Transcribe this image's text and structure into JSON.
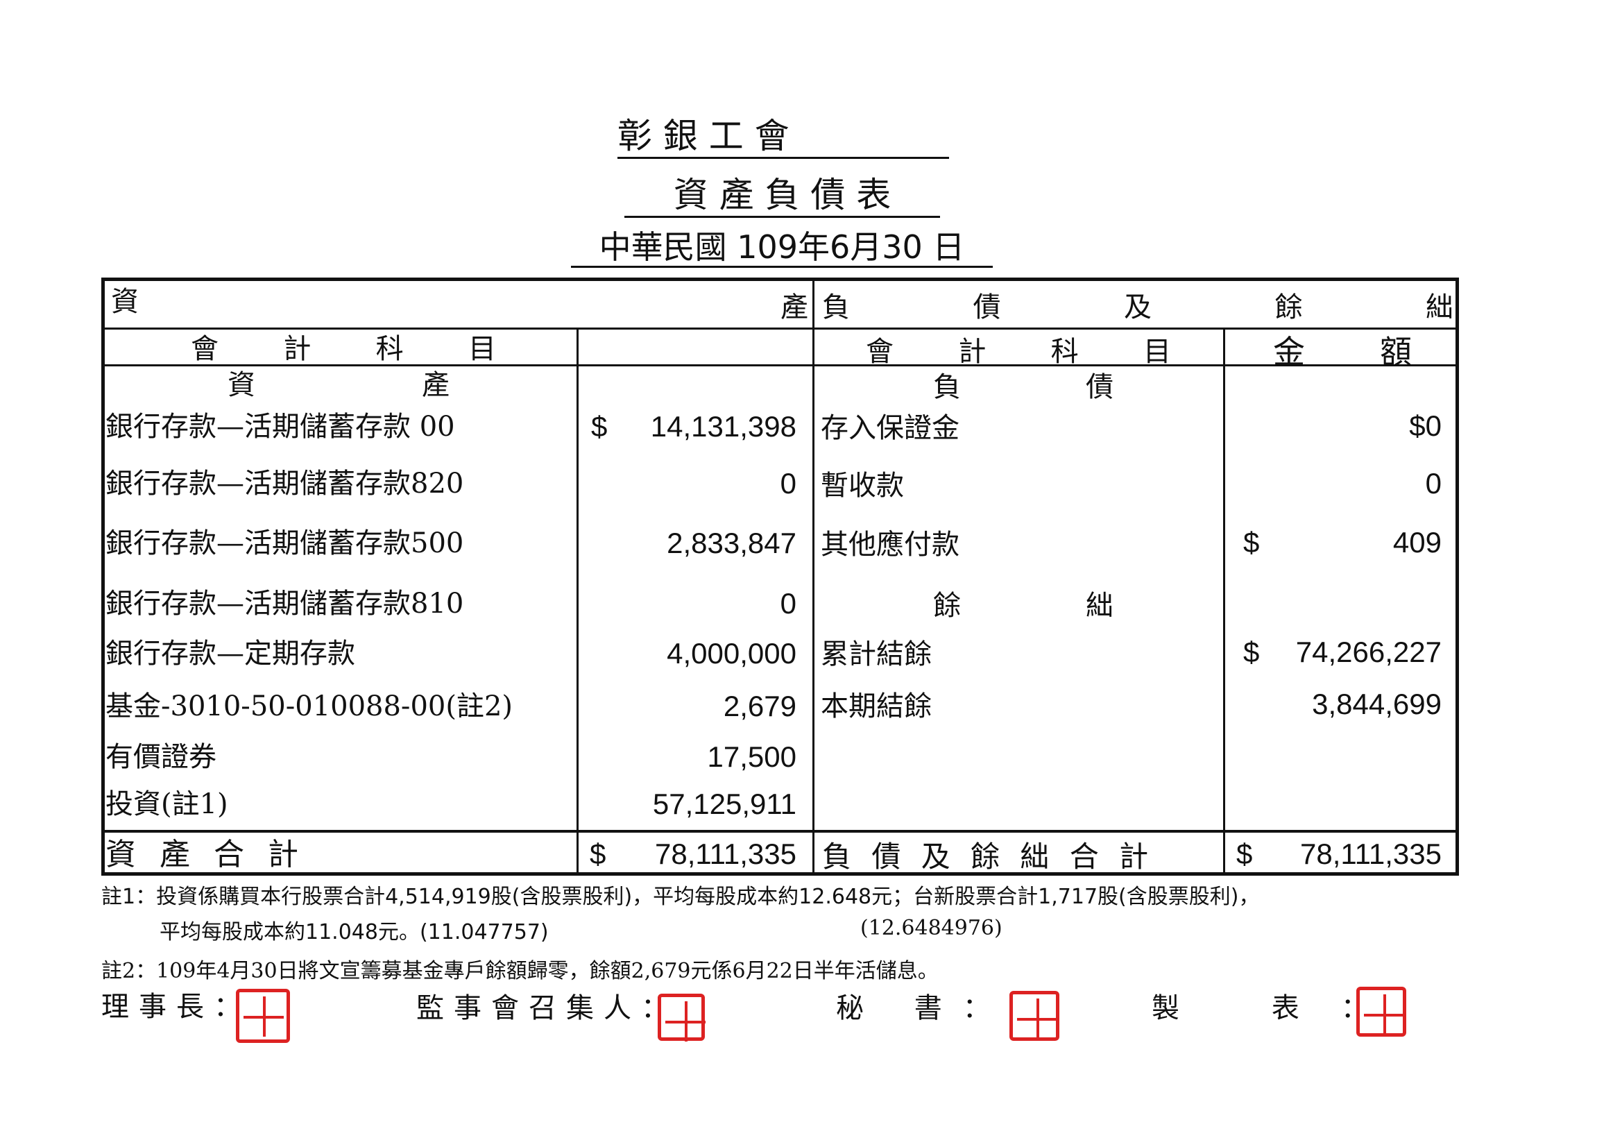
{
  "header": {
    "org": "彰 銀 工 會",
    "title": "資 產 負 債 表",
    "date": "中華民國 109年6月30 日"
  },
  "table": {
    "assets_heading": [
      "資",
      "產"
    ],
    "liab_heading": [
      "負",
      "債",
      "及",
      "餘",
      "絀"
    ],
    "col_account": [
      "會",
      "計",
      "科",
      "目"
    ],
    "col_amount": [
      "金",
      "額"
    ],
    "assets_section": [
      "資",
      "產"
    ],
    "liab_section": [
      "負",
      "債"
    ],
    "equity_section": [
      "餘",
      "絀"
    ],
    "assets": [
      {
        "name": "銀行存款—活期儲蓄存款 00",
        "currency": "$",
        "amount": "14,131,398"
      },
      {
        "name": "銀行存款—活期儲蓄存款820",
        "currency": "",
        "amount": "0"
      },
      {
        "name": "銀行存款—活期儲蓄存款500",
        "currency": "",
        "amount": "2,833,847"
      },
      {
        "name": "銀行存款—活期儲蓄存款810",
        "currency": "",
        "amount": "0"
      },
      {
        "name": "銀行存款—定期存款",
        "currency": "",
        "amount": "4,000,000"
      },
      {
        "name": "基金-3010-50-010088-00(註2)",
        "currency": "",
        "amount": "2,679"
      },
      {
        "name": "有價證券",
        "currency": "",
        "amount": "17,500"
      },
      {
        "name": "投資(註1)",
        "currency": "",
        "amount": "57,125,911"
      }
    ],
    "liabilities": [
      {
        "name": "存入保證金",
        "currency": "",
        "amount": "$0"
      },
      {
        "name": "暫收款",
        "currency": "",
        "amount": "0"
      },
      {
        "name": "其他應付款",
        "currency": "$",
        "amount": "409"
      }
    ],
    "equity": [
      {
        "name": "累計結餘",
        "currency": "$",
        "amount": "74,266,227"
      },
      {
        "name": "本期結餘",
        "currency": "",
        "amount": "3,844,699"
      }
    ],
    "total_assets": {
      "label": "資 產 合 計",
      "currency": "$",
      "amount": "78,111,335"
    },
    "total_liab": {
      "label": "負 債 及 餘 絀 合 計",
      "currency": "$",
      "amount": "78,111,335"
    }
  },
  "notes": {
    "n1a": "註1：投資係購買本行股票合計4,514,919股(含股票股利)，平均每股成本約12.648元；台新股票合計1,717股(含股票股利)，",
    "n1b": "平均每股成本約11.048元。(11.047757)",
    "n1c": "(12.6484976)",
    "n2": "註2：109年4月30日將文宣籌募基金專戶餘額歸零，餘額2,679元係6月22日半年活儲息。"
  },
  "signatures": {
    "chairman": "理事長：",
    "supervisor": "監事會召集人：",
    "secretary": "秘 書：",
    "preparer": "製 表："
  },
  "colors": {
    "seal": "#dd2222",
    "ink": "#111111"
  }
}
